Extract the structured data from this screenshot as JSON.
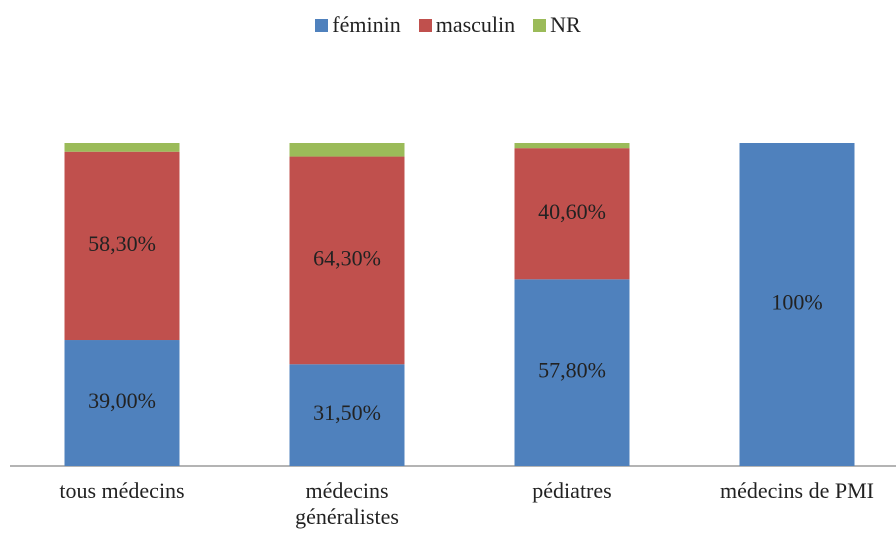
{
  "chart_data": {
    "type": "stacked_bar",
    "categories": [
      "tous médecins",
      "médecins généralistes",
      "pédiatres",
      "médecins de PMI"
    ],
    "series": [
      {
        "name": "féminin",
        "color": "#4f81bd",
        "values": [
          39.0,
          31.5,
          57.8,
          100
        ],
        "value_labels": [
          "39,00%",
          "31,50%",
          "57,80%",
          "100%"
        ]
      },
      {
        "name": "masculin",
        "color": "#c0504d",
        "values": [
          58.3,
          64.3,
          40.6,
          0
        ],
        "value_labels": [
          "58,30%",
          "64,30%",
          "40,60%",
          null
        ]
      },
      {
        "name": "NR",
        "color": "#9bbb59",
        "values": [
          2.7,
          4.2,
          1.6,
          0
        ]
      }
    ],
    "ylim": [
      0,
      100
    ],
    "legend": "top"
  }
}
